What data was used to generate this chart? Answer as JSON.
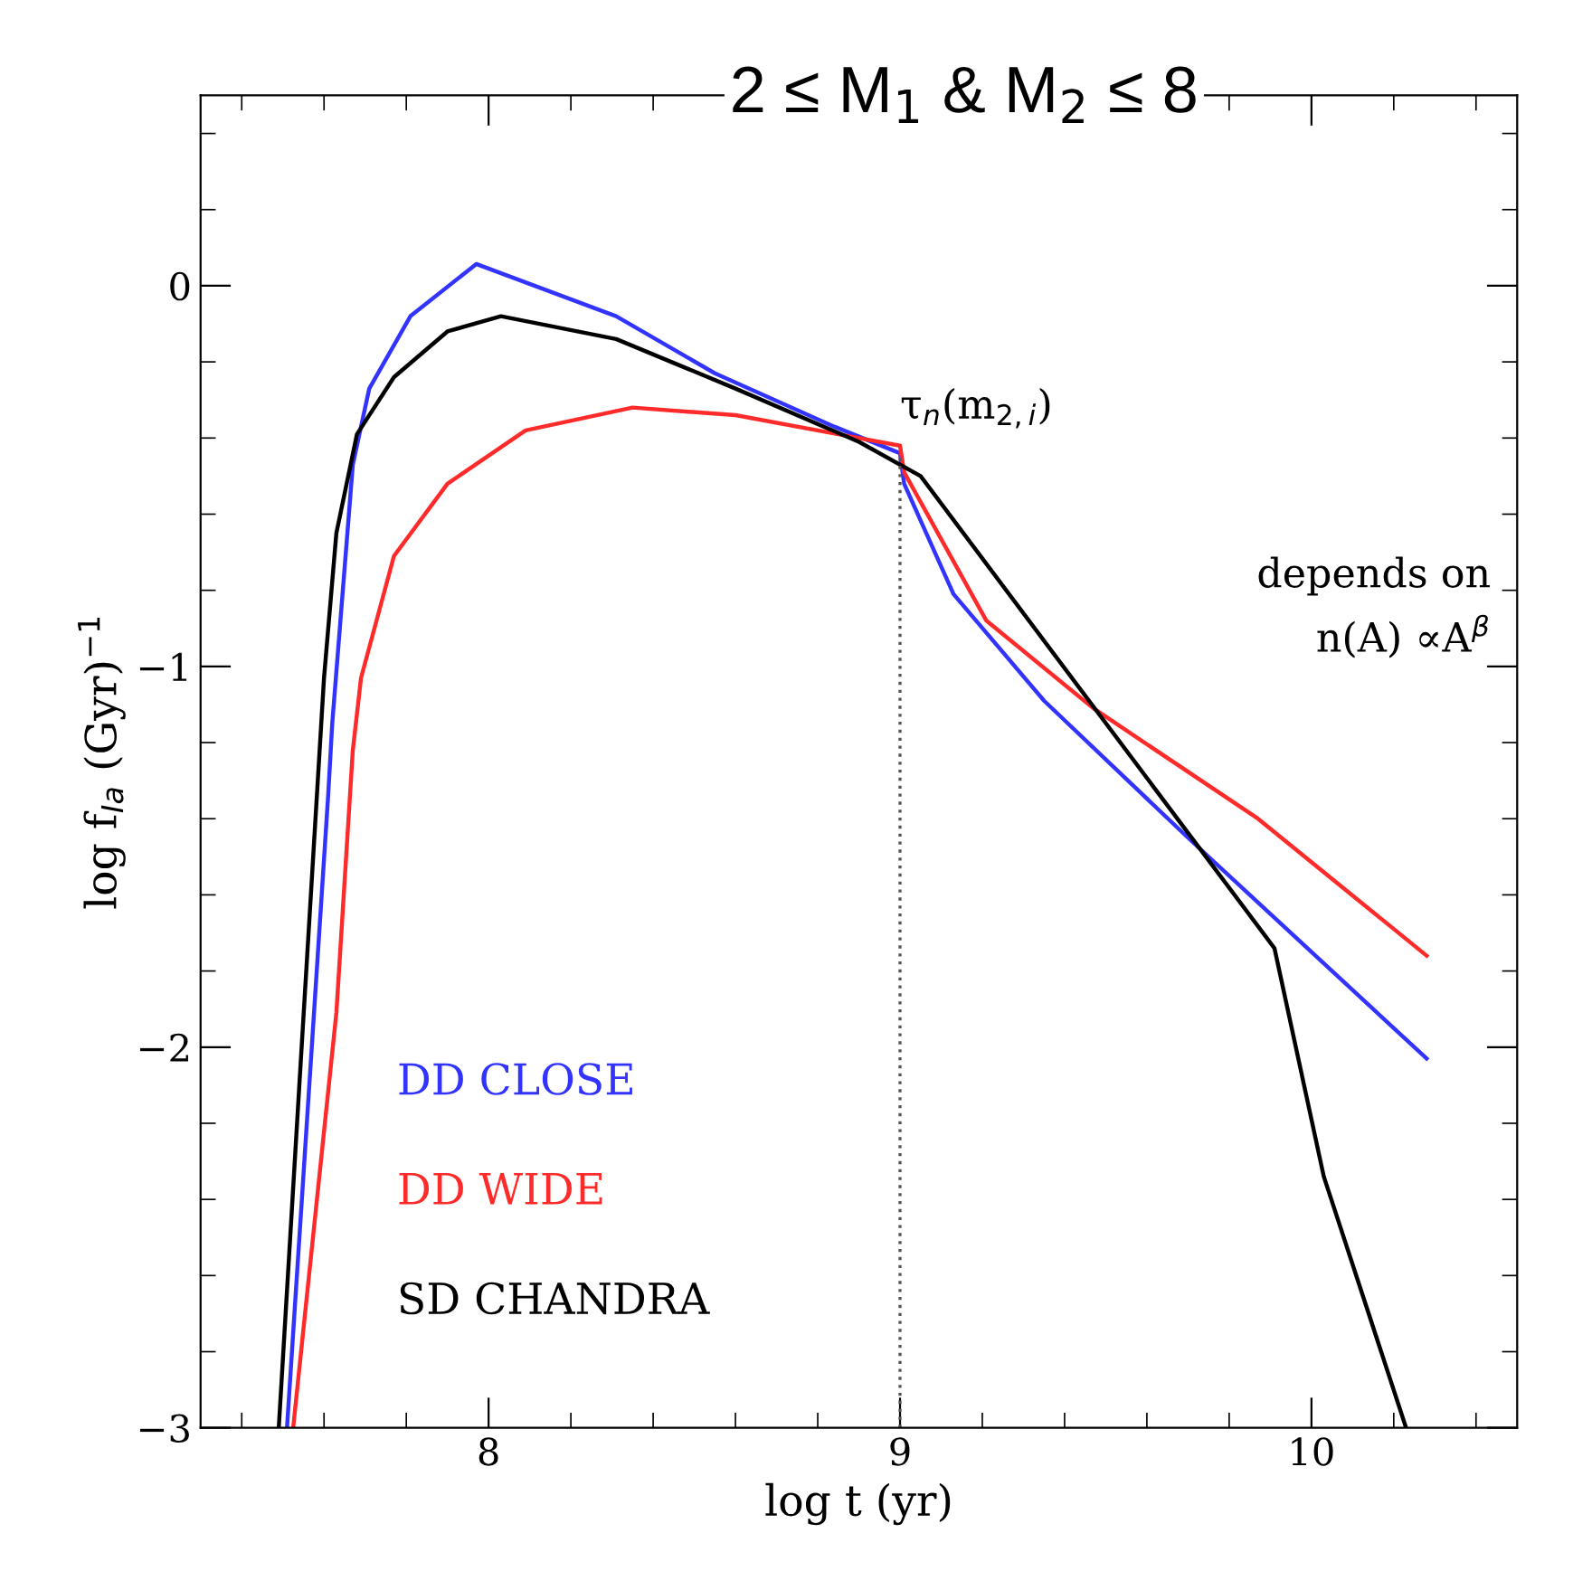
{
  "chart_data": {
    "type": "line",
    "title": "2 ≤ M$_{1}$ & M$_{2}$ ≤ 8",
    "xlabel": "log t (yr)",
    "ylabel": "log f$_{Ia}$ (Gyr)$^{−1}$",
    "xlim": [
      7.3,
      10.5
    ],
    "ylim": [
      -3,
      0.5
    ],
    "xticks": [
      8,
      9,
      10
    ],
    "yticks": [
      {
        "value": -3,
        "label": "−3"
      },
      {
        "value": -2,
        "label": "−2"
      },
      {
        "value": -1,
        "label": "−1"
      },
      0
    ],
    "grid": false,
    "legend": "bottom left",
    "line_style": "solid",
    "ref_lines": [
      {
        "axis": "x",
        "value": 9,
        "label": "τ$_{n}$(m$_{2,i}$)",
        "color": "#555555",
        "line_style": "dotted"
      }
    ],
    "annotations": [
      "depends on\nn(A) ∝A$^{β}$"
    ],
    "series": [
      {
        "name": "DD CLOSE",
        "color": "#3333ff",
        "x": [
          7.51,
          7.61,
          7.62,
          7.67,
          7.71,
          7.81,
          7.97,
          8.31,
          8.55,
          8.84,
          9.0,
          9.01,
          9.13,
          9.35,
          9.7,
          10.28
        ],
        "values": [
          -3,
          -1.34,
          -1.15,
          -0.47,
          -0.27,
          -0.08,
          0.057,
          -0.08,
          -0.23,
          -0.37,
          -0.44,
          -0.52,
          -0.81,
          -1.09,
          -1.45,
          -2.03
        ]
      },
      {
        "name": "DD WIDE",
        "color": "#ff2a2a",
        "x": [
          7.525,
          7.63,
          7.67,
          7.69,
          7.77,
          7.9,
          8.09,
          8.35,
          8.6,
          8.85,
          9.0,
          9.01,
          9.21,
          9.47,
          9.87,
          10.28
        ],
        "values": [
          -3,
          -1.91,
          -1.22,
          -1.03,
          -0.71,
          -0.52,
          -0.38,
          -0.32,
          -0.34,
          -0.39,
          -0.42,
          -0.49,
          -0.88,
          -1.11,
          -1.4,
          -1.76
        ]
      },
      {
        "name": "SD CHANDRA",
        "color": "#000000",
        "x": [
          7.49,
          7.54,
          7.6,
          7.63,
          7.68,
          7.77,
          7.9,
          8.03,
          8.31,
          8.6,
          8.9,
          9.0,
          9.05,
          9.91,
          10.03,
          10.23
        ],
        "values": [
          -3,
          -2.1,
          -1.03,
          -0.65,
          -0.39,
          -0.24,
          -0.12,
          -0.08,
          -0.14,
          -0.27,
          -0.41,
          -0.47,
          -0.5,
          -1.74,
          -2.34,
          -3
        ]
      }
    ]
  }
}
